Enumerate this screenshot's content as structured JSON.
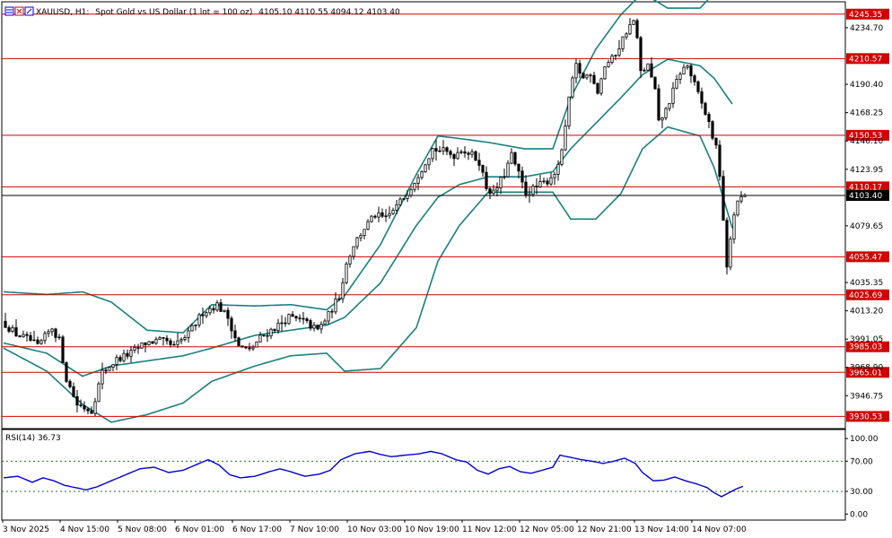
{
  "header": {
    "symbol": "XAUUSD, H1:",
    "description": "Spot Gold vs US Dollar (1 lot = 100 oz)",
    "ohlc": "4105.10 4110.55 4094.12 4103.40"
  },
  "rsi_header": "RSI(14) 36.73",
  "colors": {
    "candle": "#000000",
    "bands": "#1a7f7f",
    "level": "#d40000",
    "rsi": "#0000cc",
    "price_line": "#000000"
  },
  "chart_data": [
    {
      "type": "candlestick",
      "symbol": "XAUUSD",
      "timeframe": "H1",
      "ylim": [
        3921,
        4255
      ],
      "y_ticks": [
        "4234.70",
        "4190.40",
        "4168.25",
        "4146.10",
        "4123.95",
        "4079.65",
        "4035.35",
        "4013.20",
        "3991.05",
        "3968.90",
        "3946.75"
      ],
      "x_tick_labels": [
        "3 Nov 2025",
        "4 Nov 15:00",
        "5 Nov 08:00",
        "6 Nov 01:00",
        "6 Nov 17:00",
        "7 Nov 10:00",
        "10 Nov 03:00",
        "10 Nov 19:00",
        "11 Nov 12:00",
        "12 Nov 05:00",
        "12 Nov 21:00",
        "13 Nov 14:00",
        "14 Nov 07:00"
      ],
      "horizontal_levels": [
        "4245.35",
        "4210.57",
        "4150.53",
        "4110.17",
        "4055.47",
        "4025.69",
        "3985.03",
        "3965.01",
        "3930.53"
      ],
      "current_price": "4103.40",
      "waypoints": [
        [
          0,
          4005
        ],
        [
          4,
          3995
        ],
        [
          8,
          3990
        ],
        [
          10,
          3985
        ],
        [
          14,
          4000
        ],
        [
          16,
          3990
        ],
        [
          18,
          3960
        ],
        [
          21,
          3940
        ],
        [
          25,
          3935
        ],
        [
          28,
          3965
        ],
        [
          32,
          3975
        ],
        [
          36,
          3980
        ],
        [
          40,
          3988
        ],
        [
          44,
          3990
        ],
        [
          48,
          3985
        ],
        [
          52,
          3995
        ],
        [
          56,
          4012
        ],
        [
          60,
          4018
        ],
        [
          63,
          4008
        ],
        [
          66,
          3985
        ],
        [
          69,
          3982
        ],
        [
          72,
          3992
        ],
        [
          76,
          4000
        ],
        [
          80,
          4008
        ],
        [
          84,
          4005
        ],
        [
          88,
          3998
        ],
        [
          91,
          4010
        ],
        [
          94,
          4025
        ],
        [
          96,
          4050
        ],
        [
          98,
          4065
        ],
        [
          101,
          4078
        ],
        [
          104,
          4088
        ],
        [
          107,
          4085
        ],
        [
          110,
          4095
        ],
        [
          112,
          4102
        ],
        [
          115,
          4115
        ],
        [
          118,
          4130
        ],
        [
          120,
          4140
        ],
        [
          123,
          4138
        ],
        [
          126,
          4135
        ],
        [
          128,
          4140
        ],
        [
          131,
          4135
        ],
        [
          133,
          4130
        ],
        [
          135,
          4110
        ],
        [
          137,
          4105
        ],
        [
          140,
          4120
        ],
        [
          142,
          4135
        ],
        [
          144,
          4120
        ],
        [
          146,
          4105
        ],
        [
          149,
          4110
        ],
        [
          152,
          4115
        ],
        [
          155,
          4125
        ],
        [
          157,
          4155
        ],
        [
          158,
          4180
        ],
        [
          160,
          4205
        ],
        [
          162,
          4195
        ],
        [
          164,
          4200
        ],
        [
          166,
          4185
        ],
        [
          168,
          4205
        ],
        [
          170,
          4210
        ],
        [
          172,
          4220
        ],
        [
          174,
          4232
        ],
        [
          176,
          4240
        ],
        [
          177,
          4225
        ],
        [
          178,
          4200
        ],
        [
          180,
          4205
        ],
        [
          182,
          4185
        ],
        [
          183,
          4160
        ],
        [
          185,
          4170
        ],
        [
          187,
          4185
        ],
        [
          189,
          4200
        ],
        [
          191,
          4205
        ],
        [
          193,
          4190
        ],
        [
          195,
          4175
        ],
        [
          197,
          4160
        ],
        [
          199,
          4140
        ],
        [
          200,
          4120
        ],
        [
          201,
          4085
        ],
        [
          202,
          4045
        ],
        [
          203,
          4070
        ],
        [
          204,
          4090
        ],
        [
          206,
          4103.4
        ]
      ],
      "bands": {
        "upper": [
          [
            0,
            4028
          ],
          [
            12,
            4026
          ],
          [
            22,
            4028
          ],
          [
            30,
            4020
          ],
          [
            40,
            3998
          ],
          [
            50,
            3996
          ],
          [
            58,
            4018
          ],
          [
            70,
            4017
          ],
          [
            80,
            4018
          ],
          [
            90,
            4014
          ],
          [
            95,
            4025
          ],
          [
            105,
            4065
          ],
          [
            115,
            4120
          ],
          [
            121,
            4150
          ],
          [
            127,
            4148
          ],
          [
            135,
            4145
          ],
          [
            145,
            4140
          ],
          [
            153,
            4140
          ],
          [
            158,
            4180
          ],
          [
            165,
            4218
          ],
          [
            172,
            4245
          ],
          [
            178,
            4262
          ],
          [
            185,
            4250
          ],
          [
            194,
            4250
          ],
          [
            198,
            4262
          ],
          [
            203,
            4262
          ]
        ],
        "middle": [
          [
            0,
            3988
          ],
          [
            12,
            3980
          ],
          [
            22,
            3962
          ],
          [
            30,
            3970
          ],
          [
            40,
            3974
          ],
          [
            50,
            3978
          ],
          [
            58,
            3984
          ],
          [
            70,
            3994
          ],
          [
            80,
            3998
          ],
          [
            90,
            4002
          ],
          [
            95,
            4008
          ],
          [
            105,
            4035
          ],
          [
            115,
            4080
          ],
          [
            121,
            4102
          ],
          [
            127,
            4112
          ],
          [
            135,
            4118
          ],
          [
            145,
            4118
          ],
          [
            153,
            4122
          ],
          [
            158,
            4140
          ],
          [
            165,
            4160
          ],
          [
            172,
            4180
          ],
          [
            178,
            4198
          ],
          [
            185,
            4210
          ],
          [
            194,
            4205
          ],
          [
            198,
            4195
          ],
          [
            203,
            4175
          ]
        ],
        "lower": [
          [
            0,
            3984
          ],
          [
            12,
            3966
          ],
          [
            22,
            3940
          ],
          [
            30,
            3926
          ],
          [
            40,
            3932
          ],
          [
            50,
            3941
          ],
          [
            58,
            3958
          ],
          [
            70,
            3970
          ],
          [
            80,
            3978
          ],
          [
            90,
            3980
          ],
          [
            95,
            3966
          ],
          [
            105,
            3968
          ],
          [
            115,
            4000
          ],
          [
            121,
            4052
          ],
          [
            127,
            4080
          ],
          [
            135,
            4106
          ],
          [
            145,
            4106
          ],
          [
            153,
            4106
          ],
          [
            158,
            4085
          ],
          [
            165,
            4085
          ],
          [
            172,
            4105
          ],
          [
            178,
            4140
          ],
          [
            185,
            4157
          ],
          [
            194,
            4150
          ],
          [
            198,
            4125
          ],
          [
            203,
            4078
          ]
        ]
      }
    },
    {
      "type": "line",
      "indicator": "RSI(14)",
      "ylim": [
        -8,
        112
      ],
      "y_ticks": [
        "100.00",
        "70.00",
        "30.00",
        "0.00"
      ],
      "dotted_levels": [
        70,
        30
      ],
      "waypoints": [
        [
          0,
          48
        ],
        [
          4,
          50
        ],
        [
          8,
          42
        ],
        [
          11,
          48
        ],
        [
          14,
          44
        ],
        [
          17,
          38
        ],
        [
          20,
          35
        ],
        [
          23,
          32
        ],
        [
          26,
          36
        ],
        [
          30,
          44
        ],
        [
          34,
          52
        ],
        [
          38,
          60
        ],
        [
          42,
          62
        ],
        [
          46,
          55
        ],
        [
          50,
          58
        ],
        [
          54,
          66
        ],
        [
          57,
          72
        ],
        [
          60,
          65
        ],
        [
          63,
          52
        ],
        [
          66,
          48
        ],
        [
          70,
          50
        ],
        [
          74,
          56
        ],
        [
          77,
          60
        ],
        [
          80,
          56
        ],
        [
          84,
          50
        ],
        [
          88,
          53
        ],
        [
          91,
          58
        ],
        [
          94,
          72
        ],
        [
          98,
          80
        ],
        [
          102,
          83
        ],
        [
          105,
          79
        ],
        [
          108,
          76
        ],
        [
          112,
          78
        ],
        [
          116,
          80
        ],
        [
          119,
          83
        ],
        [
          122,
          80
        ],
        [
          126,
          72
        ],
        [
          129,
          69
        ],
        [
          132,
          58
        ],
        [
          135,
          53
        ],
        [
          138,
          60
        ],
        [
          141,
          63
        ],
        [
          144,
          56
        ],
        [
          147,
          54
        ],
        [
          150,
          58
        ],
        [
          153,
          62
        ],
        [
          155,
          78
        ],
        [
          158,
          75
        ],
        [
          161,
          72
        ],
        [
          164,
          70
        ],
        [
          167,
          67
        ],
        [
          170,
          70
        ],
        [
          173,
          74
        ],
        [
          176,
          67
        ],
        [
          178,
          55
        ],
        [
          181,
          44
        ],
        [
          184,
          45
        ],
        [
          187,
          49
        ],
        [
          190,
          44
        ],
        [
          193,
          40
        ],
        [
          196,
          35
        ],
        [
          198,
          28
        ],
        [
          200,
          23
        ],
        [
          202,
          28
        ],
        [
          204,
          33
        ],
        [
          206,
          36.73
        ]
      ]
    }
  ]
}
